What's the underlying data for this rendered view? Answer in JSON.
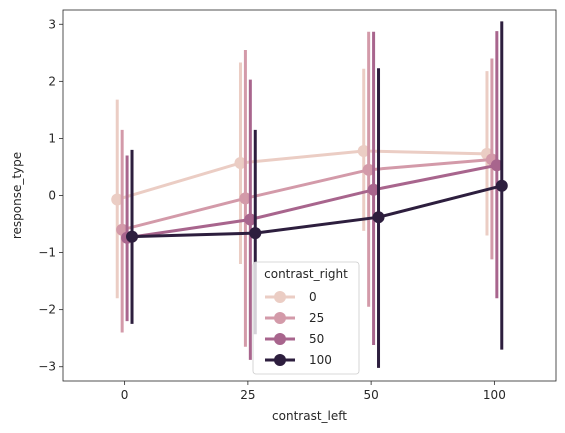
{
  "chart_data": {
    "type": "line",
    "subtype": "pointplot-with-error-bars",
    "xlabel": "contrast_left",
    "ylabel": "response_type",
    "categories": [
      "0",
      "25",
      "50",
      "100"
    ],
    "ylim": [
      -3.25,
      3.25
    ],
    "yticks": [
      -3,
      -2,
      -1,
      0,
      1,
      2,
      3
    ],
    "grid": false,
    "legend": {
      "title": "contrast_right",
      "position": "lower-center"
    },
    "series": [
      {
        "name": "0",
        "color": "#ebcdc4",
        "values": [
          -0.07,
          0.57,
          0.78,
          0.73
        ],
        "err_low": [
          -1.8,
          -1.2,
          -0.62,
          -0.7
        ],
        "err_high": [
          1.68,
          2.33,
          2.22,
          2.18
        ]
      },
      {
        "name": "25",
        "color": "#d39aa9",
        "values": [
          -0.6,
          -0.05,
          0.45,
          0.63
        ],
        "err_low": [
          -2.4,
          -2.65,
          -1.95,
          -1.12
        ],
        "err_high": [
          1.15,
          2.55,
          2.87,
          2.4
        ]
      },
      {
        "name": "50",
        "color": "#a8658d",
        "values": [
          -0.74,
          -0.42,
          0.1,
          0.53
        ],
        "err_low": [
          -2.2,
          -2.88,
          -2.62,
          -1.8
        ],
        "err_high": [
          0.7,
          2.03,
          2.87,
          2.88
        ]
      },
      {
        "name": "100",
        "color": "#2d1e3e",
        "values": [
          -0.72,
          -0.66,
          -0.38,
          0.17
        ],
        "err_low": [
          -2.25,
          -2.43,
          -3.02,
          -2.7
        ],
        "err_high": [
          0.8,
          1.15,
          2.23,
          3.05
        ]
      }
    ]
  }
}
